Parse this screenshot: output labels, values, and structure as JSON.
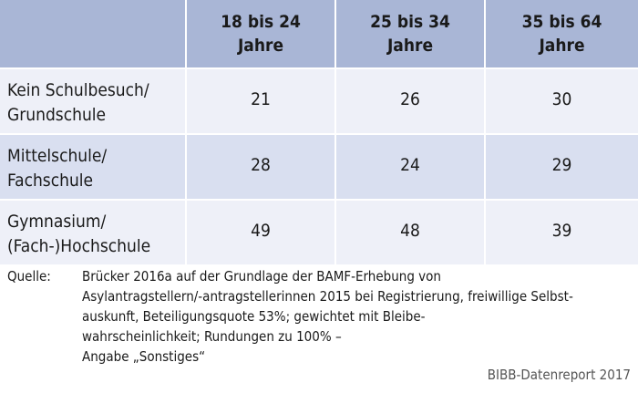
{
  "table": {
    "columns": [
      "18 bis 24\nJahre",
      "25 bis 34\nJahre",
      "35 bis 64\nJahre"
    ],
    "rows": [
      {
        "label": "Kein Schulbesuch/\nGrundschule",
        "values": [
          "21",
          "26",
          "30"
        ]
      },
      {
        "label": "Mittelschule/\nFachschule",
        "values": [
          "28",
          "24",
          "29"
        ]
      },
      {
        "label": "Gymnasium/\n(Fach-)Hochschule",
        "values": [
          "49",
          "48",
          "39"
        ]
      }
    ]
  },
  "source": {
    "label": "Quelle:",
    "text": "Brücker 2016a auf der Grundlage der BAMF-Erhebung von\nAsylantragstellern/-antragstellerinnen 2015 bei Registrierung, freiwillige Selbst-\nauskunft, Beteiligungsquote 53%; gewichtet mit Bleibe-\nwahrscheinlichkeit; Rundungen zu 100% –\nAngabe „Sonstiges“"
  },
  "credit": "BIBB-Datenreport 2017",
  "colors": {
    "header": "#a9b6d6",
    "row_light": "#eef0f8",
    "row_dark": "#d9dff0"
  }
}
